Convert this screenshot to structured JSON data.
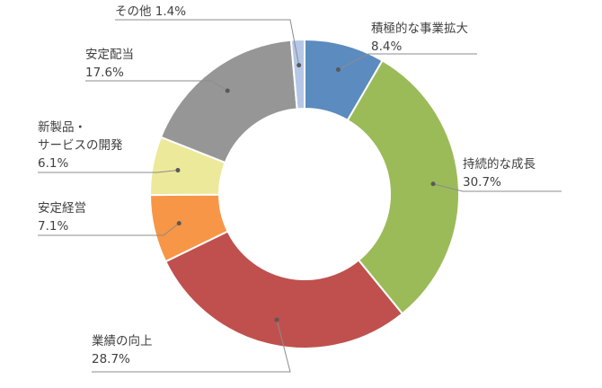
{
  "chart_data": {
    "type": "donut",
    "slices": [
      {
        "name": "積極的な事業拡大",
        "value": 8.4,
        "value_label": "8.4%",
        "color": "#5b8bbf"
      },
      {
        "name": "持続的な成長",
        "value": 30.7,
        "value_label": "30.7%",
        "color": "#9bbb59"
      },
      {
        "name": "業績の向上",
        "value": 28.7,
        "value_label": "28.7%",
        "color": "#c0504d"
      },
      {
        "name": "安定経営",
        "value": 7.1,
        "value_label": "7.1%",
        "color": "#f79646"
      },
      {
        "name": "新製品・\nサービスの開発",
        "value": 6.1,
        "value_label": "6.1%",
        "color": "#ede99a"
      },
      {
        "name": "安定配当",
        "value": 17.6,
        "value_label": "17.6%",
        "color": "#969696"
      },
      {
        "name": "その他",
        "value": 1.4,
        "value_label": "1.4%",
        "color": "#b4c7e7"
      }
    ],
    "labels": {
      "s0": {
        "line1": "積極的な事業拡大",
        "line2": "8.4%"
      },
      "s1": {
        "line1": "持続的な成長",
        "line2": "30.7%"
      },
      "s2": {
        "line1": "業績の向上",
        "line2": "28.7%"
      },
      "s3": {
        "line1": "安定経営",
        "line2": "7.1%"
      },
      "s4": {
        "line1": "新製品・",
        "line2": "サービスの開発",
        "line3": "6.1%"
      },
      "s5": {
        "line1": "安定配当",
        "line2": "17.6%"
      },
      "s6": {
        "line1": "その他 1.4%"
      }
    },
    "legend": "none",
    "start": "top, clockwise"
  }
}
